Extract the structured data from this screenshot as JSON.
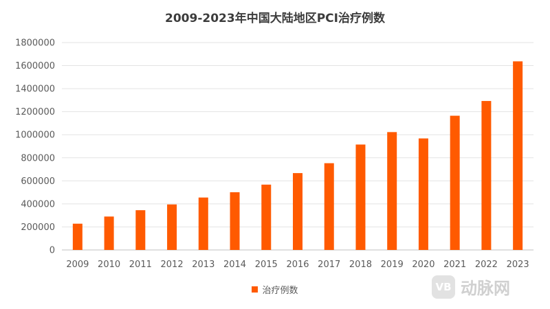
{
  "chart_data": {
    "type": "bar",
    "title": "2009-2023年中国大陆地区PCI治疗例数",
    "categories": [
      "2009",
      "2010",
      "2011",
      "2012",
      "2013",
      "2014",
      "2015",
      "2016",
      "2017",
      "2018",
      "2019",
      "2020",
      "2021",
      "2022",
      "2023"
    ],
    "series": [
      {
        "name": "治疗例数",
        "values": [
          228000,
          290000,
          345000,
          395000,
          455000,
          501000,
          567000,
          667000,
          753000,
          915000,
          1023000,
          968000,
          1165000,
          1293000,
          1637000
        ]
      }
    ],
    "ylim": [
      0,
      1800000
    ],
    "yticks": [
      "0",
      "200000",
      "400000",
      "600000",
      "800000",
      "1000000",
      "1200000",
      "1400000",
      "1600000",
      "1800000"
    ],
    "grid": true,
    "legend_position": "bottom",
    "color": "#ff5a00"
  },
  "watermark": {
    "logo_text": "VB",
    "text": "动脉网"
  }
}
